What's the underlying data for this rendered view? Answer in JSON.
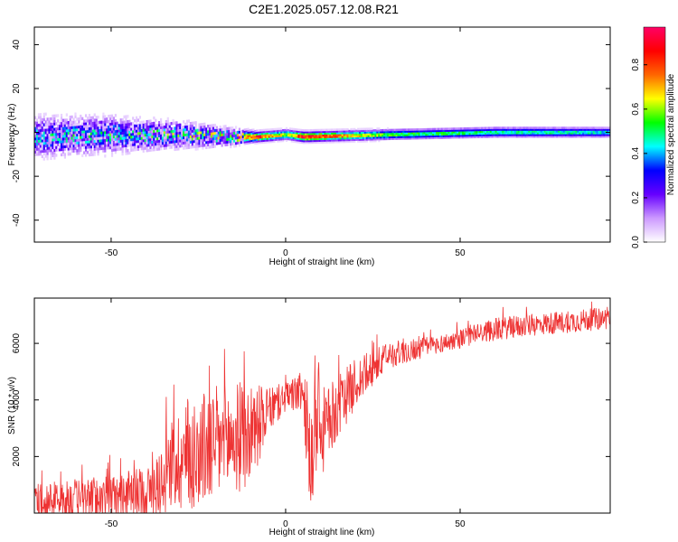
{
  "title": "C2E1.2025.057.12.08.R21",
  "chart_data": [
    {
      "type": "heatmap",
      "xlabel": "Height of straight line (km)",
      "ylabel": "Frequency (Hz)",
      "xlim": [
        -72,
        93
      ],
      "ylim": [
        -50,
        48
      ],
      "xticks": [
        -50,
        0,
        50
      ],
      "yticks": [
        -40,
        -20,
        0,
        20,
        40
      ],
      "colorbar": {
        "label": "Normalized spectral amplitude",
        "range": [
          0,
          0.97
        ],
        "ticks": [
          0.0,
          0.2,
          0.4,
          0.6,
          0.8
        ],
        "colormap": [
          "#ffffff",
          "#cc99ff",
          "#6600ff",
          "#0000ff",
          "#00ffff",
          "#00ff00",
          "#ffff00",
          "#ff6600",
          "#ff0000",
          "#ff0066"
        ]
      },
      "band_profile": [
        {
          "x": -72,
          "center": -2,
          "halfwidth": 8,
          "amp": 0.35
        },
        {
          "x": -50,
          "center": -1,
          "halfwidth": 7,
          "amp": 0.4
        },
        {
          "x": -30,
          "center": -1,
          "halfwidth": 5,
          "amp": 0.45
        },
        {
          "x": -15,
          "center": -2,
          "halfwidth": 3,
          "amp": 0.6
        },
        {
          "x": -8,
          "center": -2,
          "halfwidth": 2,
          "amp": 0.85
        },
        {
          "x": 0,
          "center": -1,
          "halfwidth": 2,
          "amp": 0.6
        },
        {
          "x": 5,
          "center": -2,
          "halfwidth": 2,
          "amp": 0.9
        },
        {
          "x": 30,
          "center": -1,
          "halfwidth": 2,
          "amp": 0.55
        },
        {
          "x": 60,
          "center": 0,
          "halfwidth": 2,
          "amp": 0.5
        },
        {
          "x": 93,
          "center": 0,
          "halfwidth": 2,
          "amp": 0.45
        }
      ]
    },
    {
      "type": "line",
      "xlabel": "Height of straight line (km)",
      "ylabel": "SNR (10 * v/v)",
      "xlim": [
        -72,
        93
      ],
      "ylim": [
        0,
        7600
      ],
      "xticks": [
        -50,
        0,
        50
      ],
      "yticks": [
        2000,
        4000,
        6000
      ],
      "color": "#ee3333",
      "envelope": [
        {
          "x": -72,
          "mean": 400,
          "spread": 800
        },
        {
          "x": -60,
          "mean": 500,
          "spread": 900
        },
        {
          "x": -48,
          "mean": 600,
          "spread": 1000
        },
        {
          "x": -38,
          "mean": 800,
          "spread": 1200
        },
        {
          "x": -32,
          "mean": 1800,
          "spread": 2200
        },
        {
          "x": -25,
          "mean": 2200,
          "spread": 2600
        },
        {
          "x": -18,
          "mean": 2500,
          "spread": 2600
        },
        {
          "x": -10,
          "mean": 2800,
          "spread": 2400
        },
        {
          "x": -5,
          "mean": 3600,
          "spread": 1000
        },
        {
          "x": 0,
          "mean": 4100,
          "spread": 700
        },
        {
          "x": 5,
          "mean": 4300,
          "spread": 900
        },
        {
          "x": 7,
          "mean": 2000,
          "spread": 3000
        },
        {
          "x": 12,
          "mean": 3200,
          "spread": 1600
        },
        {
          "x": 20,
          "mean": 4600,
          "spread": 1100
        },
        {
          "x": 30,
          "mean": 5600,
          "spread": 600
        },
        {
          "x": 45,
          "mean": 6000,
          "spread": 400
        },
        {
          "x": 60,
          "mean": 6500,
          "spread": 500
        },
        {
          "x": 75,
          "mean": 6700,
          "spread": 500
        },
        {
          "x": 93,
          "mean": 6900,
          "spread": 500
        }
      ]
    }
  ]
}
